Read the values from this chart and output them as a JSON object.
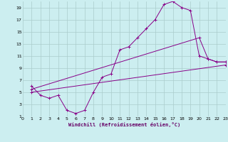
{
  "xlabel": "Windchill (Refroidissement éolien,°C)",
  "bg_color": "#cceef0",
  "grid_color": "#aacccc",
  "line_color": "#880088",
  "xlim": [
    0,
    23
  ],
  "ylim": [
    1,
    20
  ],
  "xticks": [
    0,
    1,
    2,
    3,
    4,
    5,
    6,
    7,
    8,
    9,
    10,
    11,
    12,
    13,
    14,
    15,
    16,
    17,
    18,
    19,
    20,
    21,
    22,
    23
  ],
  "yticks": [
    1,
    3,
    5,
    7,
    9,
    11,
    13,
    15,
    17,
    19
  ],
  "line1_x": [
    1,
    2,
    3,
    4,
    5,
    6,
    7,
    8,
    9,
    10,
    11,
    12,
    13,
    14,
    15,
    16,
    17,
    18,
    19,
    20,
    21,
    22,
    23
  ],
  "line1_y": [
    6,
    4.5,
    4,
    4.5,
    2,
    1.5,
    2,
    5,
    7.5,
    8,
    12,
    12.5,
    14,
    15.5,
    17,
    19.5,
    20,
    19,
    18.5,
    11,
    10.5,
    10,
    10
  ],
  "line2_x": [
    1,
    20,
    21,
    22,
    23
  ],
  "line2_y": [
    5.5,
    14,
    10.5,
    10,
    10
  ],
  "line3_x": [
    1,
    23
  ],
  "line3_y": [
    5,
    9.5
  ]
}
